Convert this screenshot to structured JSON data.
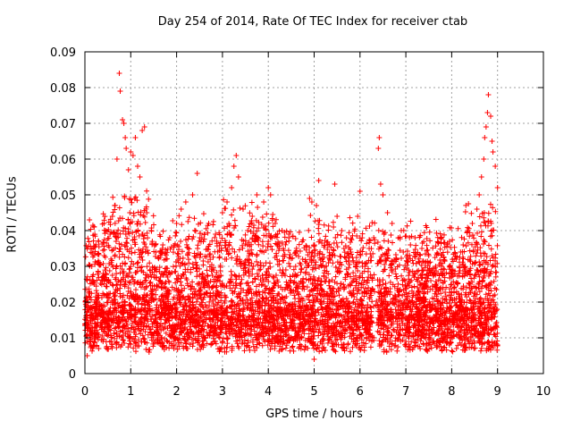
{
  "chart_data": {
    "type": "scatter",
    "title": "Day 254 of 2014, Rate Of TEC Index for receiver ctab",
    "xlabel": "GPS time / hours",
    "ylabel": "ROTI / TECUs",
    "xlim": [
      0,
      10
    ],
    "ylim": [
      0,
      0.09
    ],
    "xticks": [
      0,
      1,
      2,
      3,
      4,
      5,
      6,
      7,
      8,
      9,
      10
    ],
    "yticks": [
      0,
      0.01,
      0.02,
      0.03,
      0.04,
      0.05,
      0.06,
      0.07,
      0.08,
      0.09
    ],
    "ytick_labels": [
      "0",
      "0.01",
      "0.02",
      "0.03",
      "0.04",
      "0.05",
      "0.06",
      "0.07",
      "0.08",
      "0.09"
    ],
    "grid": true,
    "marker": "+",
    "color": "#ff0000",
    "series": [
      {
        "name": "ROTI",
        "points": [
          [
            0.1,
            0.043
          ],
          [
            0.15,
            0.03
          ],
          [
            0.2,
            0.041
          ],
          [
            0.3,
            0.037
          ],
          [
            0.4,
            0.028
          ],
          [
            0.45,
            0.04
          ],
          [
            0.55,
            0.039
          ],
          [
            0.6,
            0.044
          ],
          [
            0.65,
            0.047
          ],
          [
            0.7,
            0.06
          ],
          [
            0.75,
            0.084
          ],
          [
            0.77,
            0.079
          ],
          [
            0.82,
            0.071
          ],
          [
            0.85,
            0.07
          ],
          [
            0.88,
            0.066
          ],
          [
            0.9,
            0.063
          ],
          [
            0.95,
            0.057
          ],
          [
            1.0,
            0.062
          ],
          [
            1.05,
            0.061
          ],
          [
            1.1,
            0.066
          ],
          [
            1.15,
            0.058
          ],
          [
            1.2,
            0.055
          ],
          [
            1.25,
            0.068
          ],
          [
            1.3,
            0.069
          ],
          [
            1.35,
            0.045
          ],
          [
            1.45,
            0.04
          ],
          [
            1.55,
            0.034
          ],
          [
            1.7,
            0.036
          ],
          [
            1.85,
            0.038
          ],
          [
            2.0,
            0.042
          ],
          [
            2.1,
            0.046
          ],
          [
            2.2,
            0.048
          ],
          [
            2.35,
            0.05
          ],
          [
            2.45,
            0.056
          ],
          [
            2.55,
            0.038
          ],
          [
            2.7,
            0.042
          ],
          [
            2.85,
            0.039
          ],
          [
            3.0,
            0.045
          ],
          [
            3.1,
            0.048
          ],
          [
            3.2,
            0.052
          ],
          [
            3.25,
            0.058
          ],
          [
            3.3,
            0.061
          ],
          [
            3.35,
            0.055
          ],
          [
            3.45,
            0.046
          ],
          [
            3.55,
            0.04
          ],
          [
            3.65,
            0.044
          ],
          [
            3.75,
            0.05
          ],
          [
            3.9,
            0.048
          ],
          [
            4.0,
            0.052
          ],
          [
            4.05,
            0.05
          ],
          [
            4.15,
            0.042
          ],
          [
            4.3,
            0.04
          ],
          [
            4.45,
            0.038
          ],
          [
            4.6,
            0.034
          ],
          [
            4.75,
            0.032
          ],
          [
            4.9,
            0.049
          ],
          [
            4.95,
            0.048
          ],
          [
            5.05,
            0.047
          ],
          [
            5.1,
            0.054
          ],
          [
            5.3,
            0.036
          ],
          [
            5.45,
            0.053
          ],
          [
            5.5,
            0.044
          ],
          [
            5.65,
            0.035
          ],
          [
            5.8,
            0.034
          ],
          [
            5.95,
            0.044
          ],
          [
            6.0,
            0.051
          ],
          [
            6.2,
            0.035
          ],
          [
            6.3,
            0.038
          ],
          [
            6.4,
            0.063
          ],
          [
            6.42,
            0.066
          ],
          [
            6.45,
            0.053
          ],
          [
            6.5,
            0.05
          ],
          [
            6.6,
            0.045
          ],
          [
            6.7,
            0.042
          ],
          [
            6.9,
            0.04
          ],
          [
            7.1,
            0.036
          ],
          [
            7.2,
            0.038
          ],
          [
            7.35,
            0.035
          ],
          [
            7.5,
            0.033
          ],
          [
            7.65,
            0.03
          ],
          [
            7.8,
            0.028
          ],
          [
            7.95,
            0.03
          ],
          [
            8.1,
            0.032
          ],
          [
            8.25,
            0.036
          ],
          [
            8.35,
            0.04
          ],
          [
            8.45,
            0.042
          ],
          [
            8.55,
            0.046
          ],
          [
            8.6,
            0.05
          ],
          [
            8.65,
            0.055
          ],
          [
            8.7,
            0.06
          ],
          [
            8.72,
            0.066
          ],
          [
            8.75,
            0.069
          ],
          [
            8.78,
            0.073
          ],
          [
            8.8,
            0.078
          ],
          [
            8.85,
            0.072
          ],
          [
            8.88,
            0.065
          ],
          [
            8.9,
            0.062
          ],
          [
            8.95,
            0.058
          ],
          [
            9.0,
            0.052
          ],
          [
            0.05,
            0.005
          ],
          [
            0.3,
            0.007
          ],
          [
            0.8,
            0.008
          ],
          [
            1.4,
            0.006
          ],
          [
            1.8,
            0.009
          ],
          [
            2.5,
            0.008
          ],
          [
            3.0,
            0.009
          ],
          [
            3.5,
            0.011
          ],
          [
            4.2,
            0.009
          ],
          [
            4.6,
            0.01
          ],
          [
            5.0,
            0.004
          ],
          [
            5.2,
            0.007
          ],
          [
            5.6,
            0.008
          ],
          [
            6.0,
            0.011
          ],
          [
            6.3,
            0.01
          ],
          [
            6.6,
            0.012
          ],
          [
            7.0,
            0.009
          ],
          [
            7.4,
            0.011
          ],
          [
            7.8,
            0.01
          ],
          [
            8.2,
            0.012
          ],
          [
            8.6,
            0.009
          ],
          [
            9.0,
            0.008
          ]
        ]
      }
    ]
  }
}
